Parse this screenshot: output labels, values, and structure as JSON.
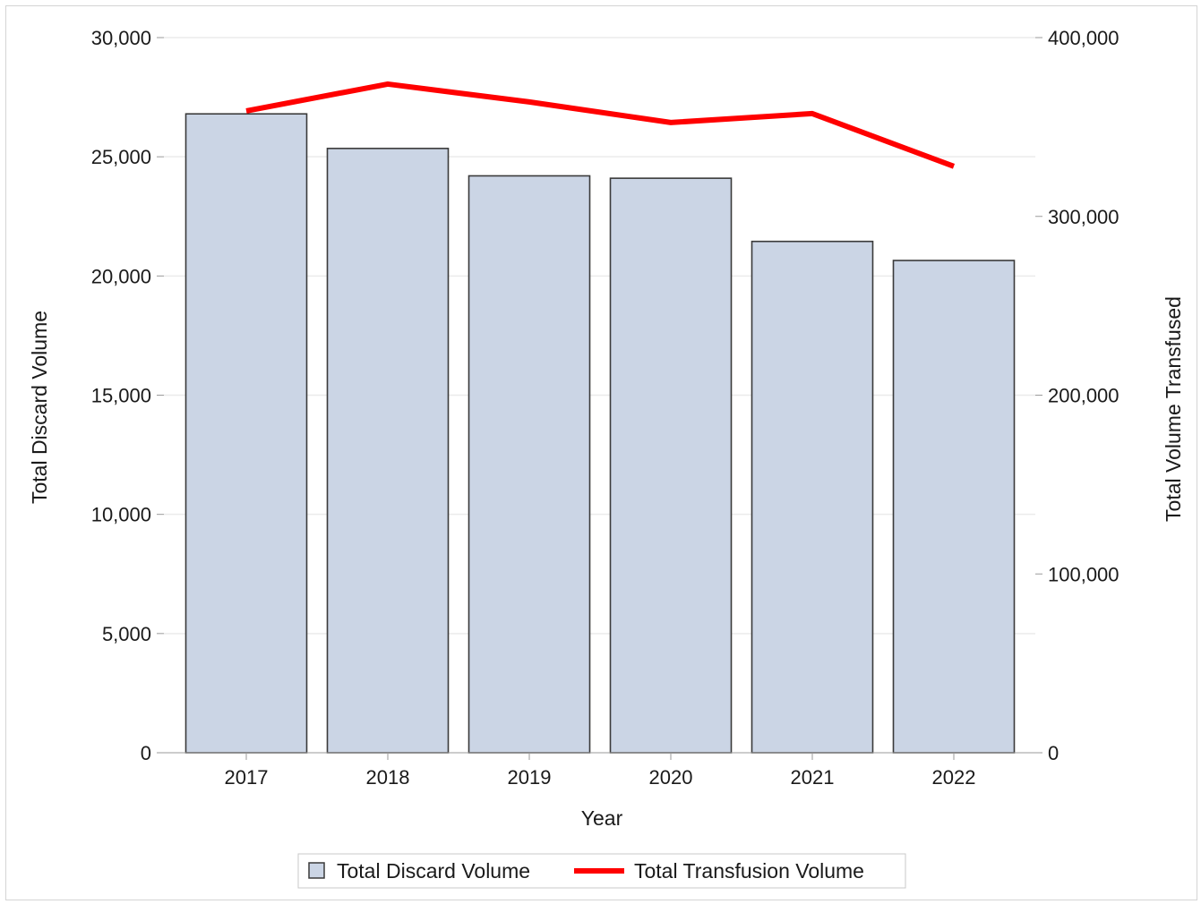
{
  "chart_data": {
    "type": "bar",
    "xlabel": "Year",
    "categories": [
      "2017",
      "2018",
      "2019",
      "2020",
      "2021",
      "2022"
    ],
    "series": [
      {
        "name": "Total Discard Volume",
        "type": "bar",
        "axis": "left",
        "values": [
          26800,
          25350,
          24200,
          24100,
          21450,
          20650
        ],
        "color": "#cbd5e5",
        "stroke": "#3a3a3a"
      },
      {
        "name": "Total Transfusion Volume",
        "type": "line",
        "axis": "right",
        "values": [
          359000,
          374000,
          364000,
          352500,
          357500,
          328000
        ],
        "color": "#ff0000"
      }
    ],
    "y_left": {
      "label": "Total Discard Volume",
      "lim": [
        0,
        30000
      ],
      "ticks": [
        0,
        5000,
        10000,
        15000,
        20000,
        25000,
        30000
      ],
      "tick_labels": [
        "0",
        "5,000",
        "10,000",
        "15,000",
        "20,000",
        "25,000",
        "30,000"
      ]
    },
    "y_right": {
      "label": "Total Volume Transfused",
      "lim": [
        0,
        400000
      ],
      "ticks": [
        0,
        100000,
        200000,
        300000,
        400000
      ],
      "tick_labels": [
        "0",
        "100,000",
        "200,000",
        "300,000",
        "400,000"
      ]
    },
    "grid": true,
    "legend_position": "bottom-center",
    "gridline_color": "#ebebeb"
  }
}
